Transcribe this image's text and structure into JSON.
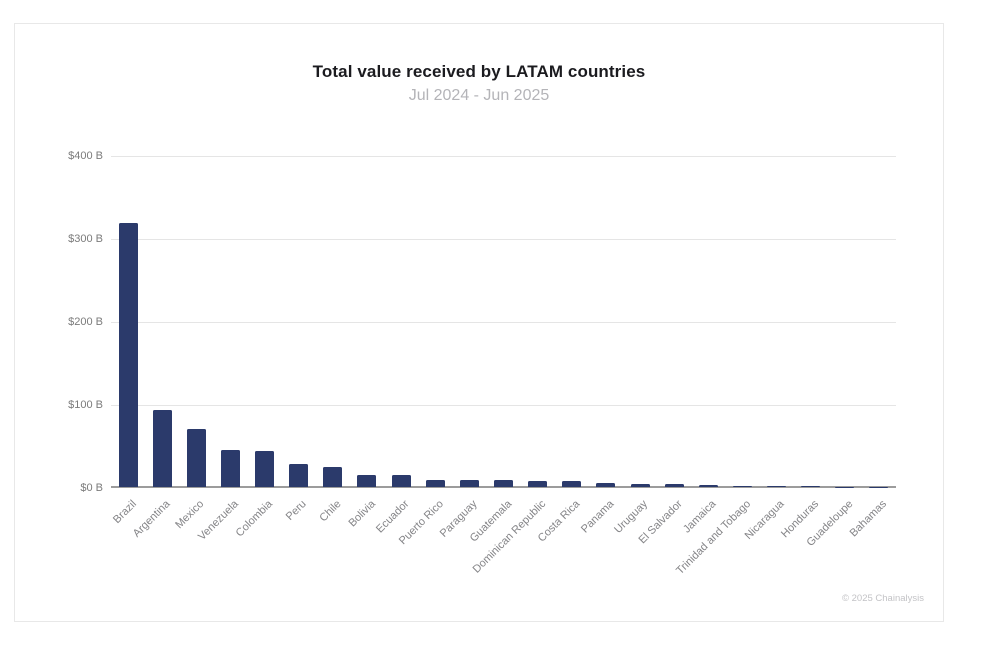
{
  "card": {
    "copyright": "© 2025 Chainalysis"
  },
  "colors": {
    "bar": "#2B3A6B",
    "gridline": "#e5e5e5",
    "axis_line": "#9c9c9c",
    "title": "#1b1b1f",
    "subtitle": "#b4b4b8",
    "tick_labels": "#848487",
    "card_border": "#e8e8e8",
    "background": "#ffffff"
  },
  "chart_data": {
    "type": "bar",
    "title": "Total value received by LATAM countries",
    "subtitle": "Jul 2024 - Jun 2025",
    "xlabel": "",
    "ylabel": "",
    "ylim": [
      0,
      400
    ],
    "yticks": [
      0,
      100,
      200,
      300,
      400
    ],
    "ytick_labels": [
      "$0 B",
      "$100 B",
      "$200 B",
      "$300 B",
      "$400 B"
    ],
    "grid": true,
    "legend": false,
    "bar_color": "#2B3A6B",
    "categories": [
      "Brazil",
      "Argentina",
      "Mexico",
      "Venezuela",
      "Colombia",
      "Peru",
      "Chile",
      "Bolivia",
      "Ecuador",
      "Puerto Rico",
      "Paraguay",
      "Guatemala",
      "Dominican Republic",
      "Costa Rica",
      "Panama",
      "Uruguay",
      "El Salvador",
      "Jamaica",
      "Trinidad and Tobago",
      "Nicaragua",
      "Honduras",
      "Guadeloupe",
      "Bahamas"
    ],
    "values": [
      318,
      93,
      70,
      44,
      43,
      28,
      24,
      15,
      14,
      9,
      8,
      8,
      7,
      7,
      5,
      4,
      4,
      3,
      1.5,
      1,
      0.8,
      0.4,
      0.3
    ],
    "values_unit": "USD billions"
  }
}
